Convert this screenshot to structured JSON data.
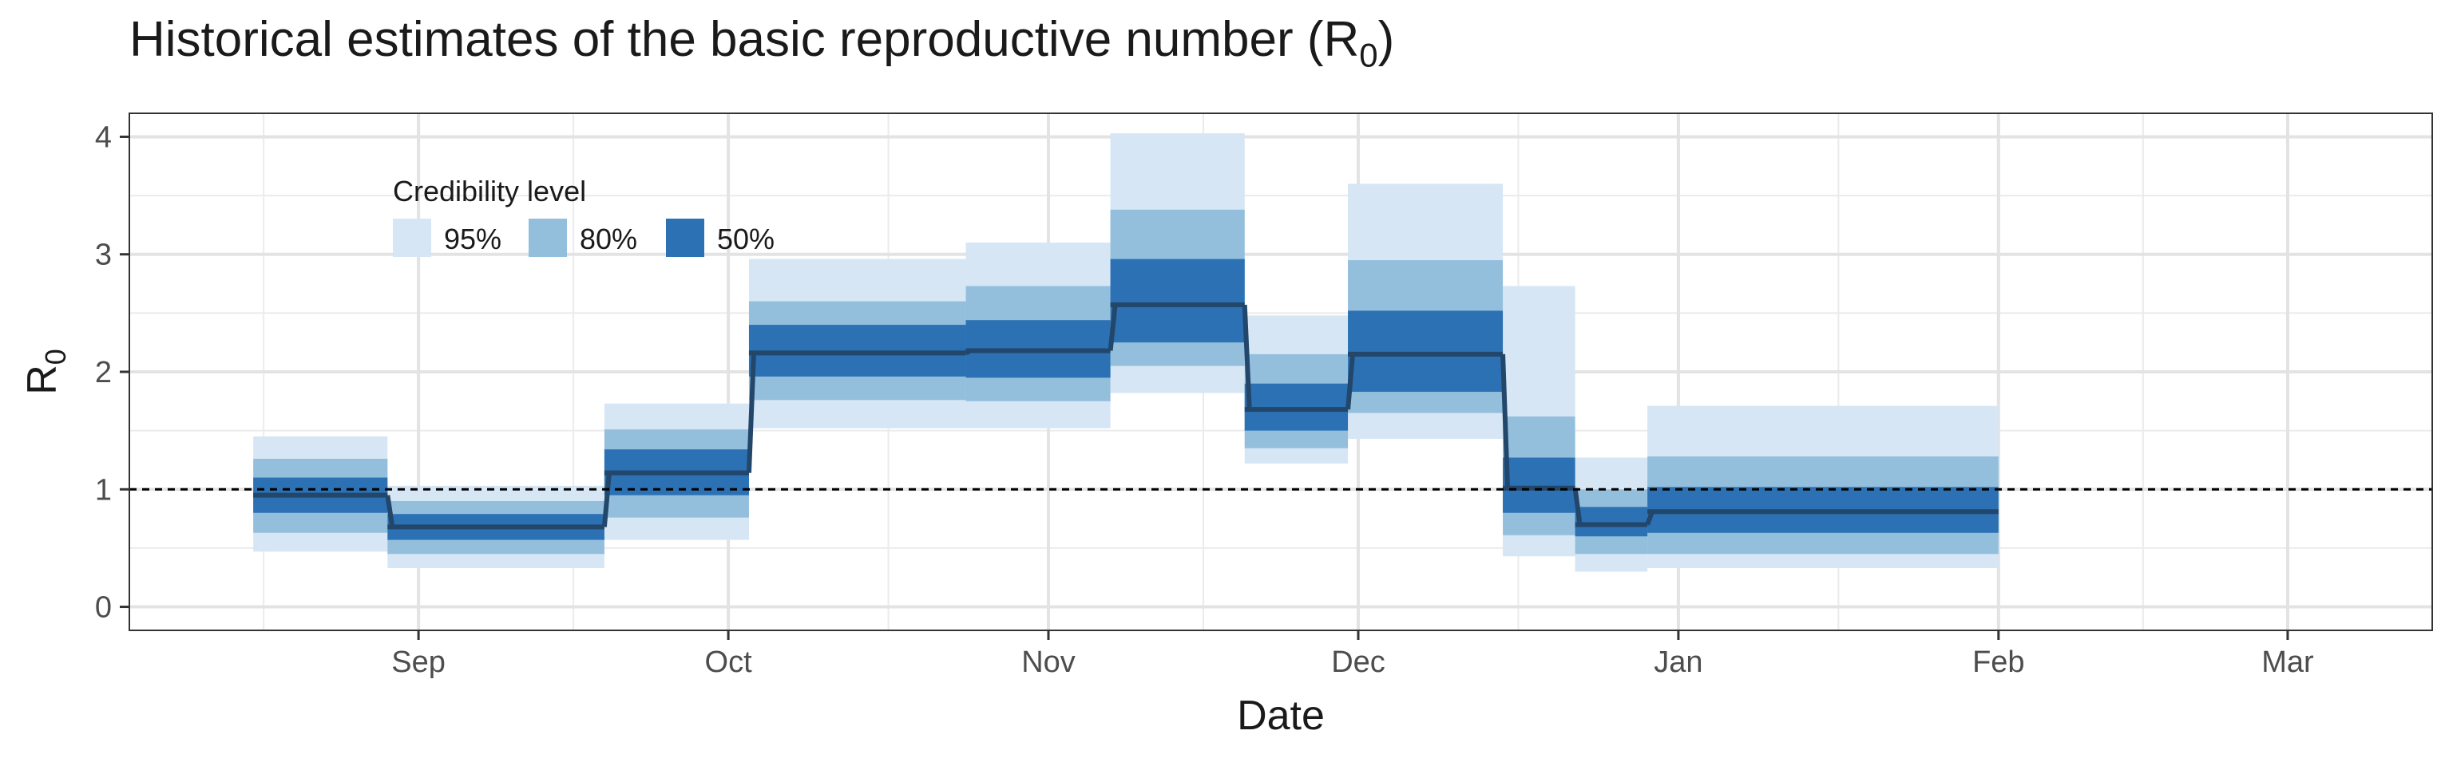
{
  "chart_data": {
    "type": "area",
    "title": "Historical estimates of the basic reproductive number (R",
    "title_subscript": "0",
    "title_close": ")",
    "xlabel": "Date",
    "ylabel": "R",
    "ylabel_subscript": "0",
    "x_axis": {
      "ticks": [
        {
          "label": "Sep",
          "date": "2020-09-01"
        },
        {
          "label": "Oct",
          "date": "2020-10-01"
        },
        {
          "label": "Nov",
          "date": "2020-11-01"
        },
        {
          "label": "Dec",
          "date": "2020-12-01"
        },
        {
          "label": "Jan",
          "date": "2021-01-01"
        },
        {
          "label": "Feb",
          "date": "2021-02-01"
        },
        {
          "label": "Mar",
          "date": "2021-03-01"
        }
      ],
      "range": [
        "2020-08-04",
        "2021-03-15"
      ]
    },
    "y_axis": {
      "ticks": [
        0,
        1,
        2,
        3,
        4
      ],
      "range": [
        -0.2,
        4.2
      ]
    },
    "reference_line": {
      "y": 1,
      "style": "dashed"
    },
    "grid": true,
    "legend": {
      "title": "Credibility level",
      "placement": "top-left",
      "items": [
        {
          "label": "95%",
          "color": "#d6e6f4"
        },
        {
          "label": "80%",
          "color": "#93bfdd"
        },
        {
          "label": "50%",
          "color": "#2b71b3"
        }
      ]
    },
    "colors": {
      "median": "#23466b",
      "reference": "#000000"
    },
    "segments": [
      {
        "start": "2020-08-16",
        "end": "2020-08-29",
        "median": 0.95,
        "ci50": [
          0.8,
          1.1
        ],
        "ci80": [
          0.63,
          1.26
        ],
        "ci95": [
          0.47,
          1.45
        ]
      },
      {
        "start": "2020-08-29",
        "end": "2020-09-19",
        "median": 0.68,
        "ci50": [
          0.57,
          0.79
        ],
        "ci80": [
          0.45,
          0.9
        ],
        "ci95": [
          0.33,
          1.03
        ]
      },
      {
        "start": "2020-09-19",
        "end": "2020-10-03",
        "median": 1.14,
        "ci50": [
          0.95,
          1.34
        ],
        "ci80": [
          0.76,
          1.51
        ],
        "ci95": [
          0.57,
          1.73
        ]
      },
      {
        "start": "2020-10-03",
        "end": "2020-10-24",
        "median": 2.16,
        "ci50": [
          1.96,
          2.4
        ],
        "ci80": [
          1.76,
          2.6
        ],
        "ci95": [
          1.52,
          2.96
        ]
      },
      {
        "start": "2020-10-24",
        "end": "2020-11-07",
        "median": 2.18,
        "ci50": [
          1.95,
          2.44
        ],
        "ci80": [
          1.75,
          2.73
        ],
        "ci95": [
          1.52,
          3.1
        ]
      },
      {
        "start": "2020-11-07",
        "end": "2020-11-20",
        "median": 2.57,
        "ci50": [
          2.25,
          2.96
        ],
        "ci80": [
          2.05,
          3.38
        ],
        "ci95": [
          1.82,
          4.03
        ]
      },
      {
        "start": "2020-11-20",
        "end": "2020-11-30",
        "median": 1.68,
        "ci50": [
          1.5,
          1.9
        ],
        "ci80": [
          1.35,
          2.15
        ],
        "ci95": [
          1.22,
          2.48
        ]
      },
      {
        "start": "2020-11-30",
        "end": "2020-12-15",
        "median": 2.15,
        "ci50": [
          1.83,
          2.52
        ],
        "ci80": [
          1.65,
          2.95
        ],
        "ci95": [
          1.43,
          3.6
        ]
      },
      {
        "start": "2020-12-15",
        "end": "2020-12-22",
        "median": 1.01,
        "ci50": [
          0.8,
          1.27
        ],
        "ci80": [
          0.61,
          1.62
        ],
        "ci95": [
          0.43,
          2.73
        ]
      },
      {
        "start": "2020-12-22",
        "end": "2020-12-29",
        "median": 0.7,
        "ci50": [
          0.6,
          0.85
        ],
        "ci80": [
          0.45,
          1.0
        ],
        "ci95": [
          0.3,
          1.27
        ]
      },
      {
        "start": "2020-12-29",
        "end": "2021-02-01",
        "median": 0.81,
        "ci50": [
          0.63,
          1.02
        ],
        "ci80": [
          0.45,
          1.28
        ],
        "ci95": [
          0.33,
          1.71
        ]
      }
    ]
  }
}
